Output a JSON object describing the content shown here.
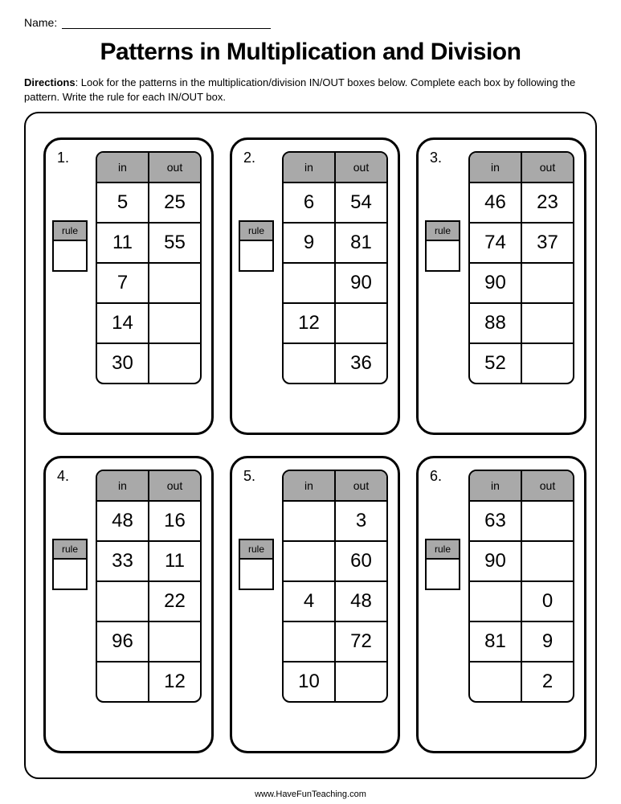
{
  "name_label": "Name:",
  "title": "Patterns in Multiplication and Division",
  "directions_label": "Directions",
  "directions_text": ": Look for the patterns in the multiplication/division IN/OUT boxes below.  Complete each box by following the pattern.  Write the rule for each IN/OUT box.",
  "rule_label": "rule",
  "in_label": "in",
  "out_label": "out",
  "footer": "www.HaveFunTeaching.com",
  "header_bg": "#a9a9a9",
  "boxes": [
    {
      "num": "1.",
      "rows": [
        {
          "in": "5",
          "out": "25"
        },
        {
          "in": "11",
          "out": "55"
        },
        {
          "in": "7",
          "out": ""
        },
        {
          "in": "14",
          "out": ""
        },
        {
          "in": "30",
          "out": ""
        }
      ]
    },
    {
      "num": "2.",
      "rows": [
        {
          "in": "6",
          "out": "54"
        },
        {
          "in": "9",
          "out": "81"
        },
        {
          "in": "",
          "out": "90"
        },
        {
          "in": "12",
          "out": ""
        },
        {
          "in": "",
          "out": "36"
        }
      ]
    },
    {
      "num": "3.",
      "rows": [
        {
          "in": "46",
          "out": "23"
        },
        {
          "in": "74",
          "out": "37"
        },
        {
          "in": "90",
          "out": ""
        },
        {
          "in": "88",
          "out": ""
        },
        {
          "in": "52",
          "out": ""
        }
      ]
    },
    {
      "num": "4.",
      "rows": [
        {
          "in": "48",
          "out": "16"
        },
        {
          "in": "33",
          "out": "11"
        },
        {
          "in": "",
          "out": "22"
        },
        {
          "in": "96",
          "out": ""
        },
        {
          "in": "",
          "out": "12"
        }
      ]
    },
    {
      "num": "5.",
      "rows": [
        {
          "in": "",
          "out": "3"
        },
        {
          "in": "",
          "out": "60"
        },
        {
          "in": "4",
          "out": "48"
        },
        {
          "in": "",
          "out": "72"
        },
        {
          "in": "10",
          "out": ""
        }
      ]
    },
    {
      "num": "6.",
      "rows": [
        {
          "in": "63",
          "out": ""
        },
        {
          "in": "90",
          "out": ""
        },
        {
          "in": "",
          "out": "0"
        },
        {
          "in": "81",
          "out": "9"
        },
        {
          "in": "",
          "out": "2"
        }
      ]
    }
  ]
}
